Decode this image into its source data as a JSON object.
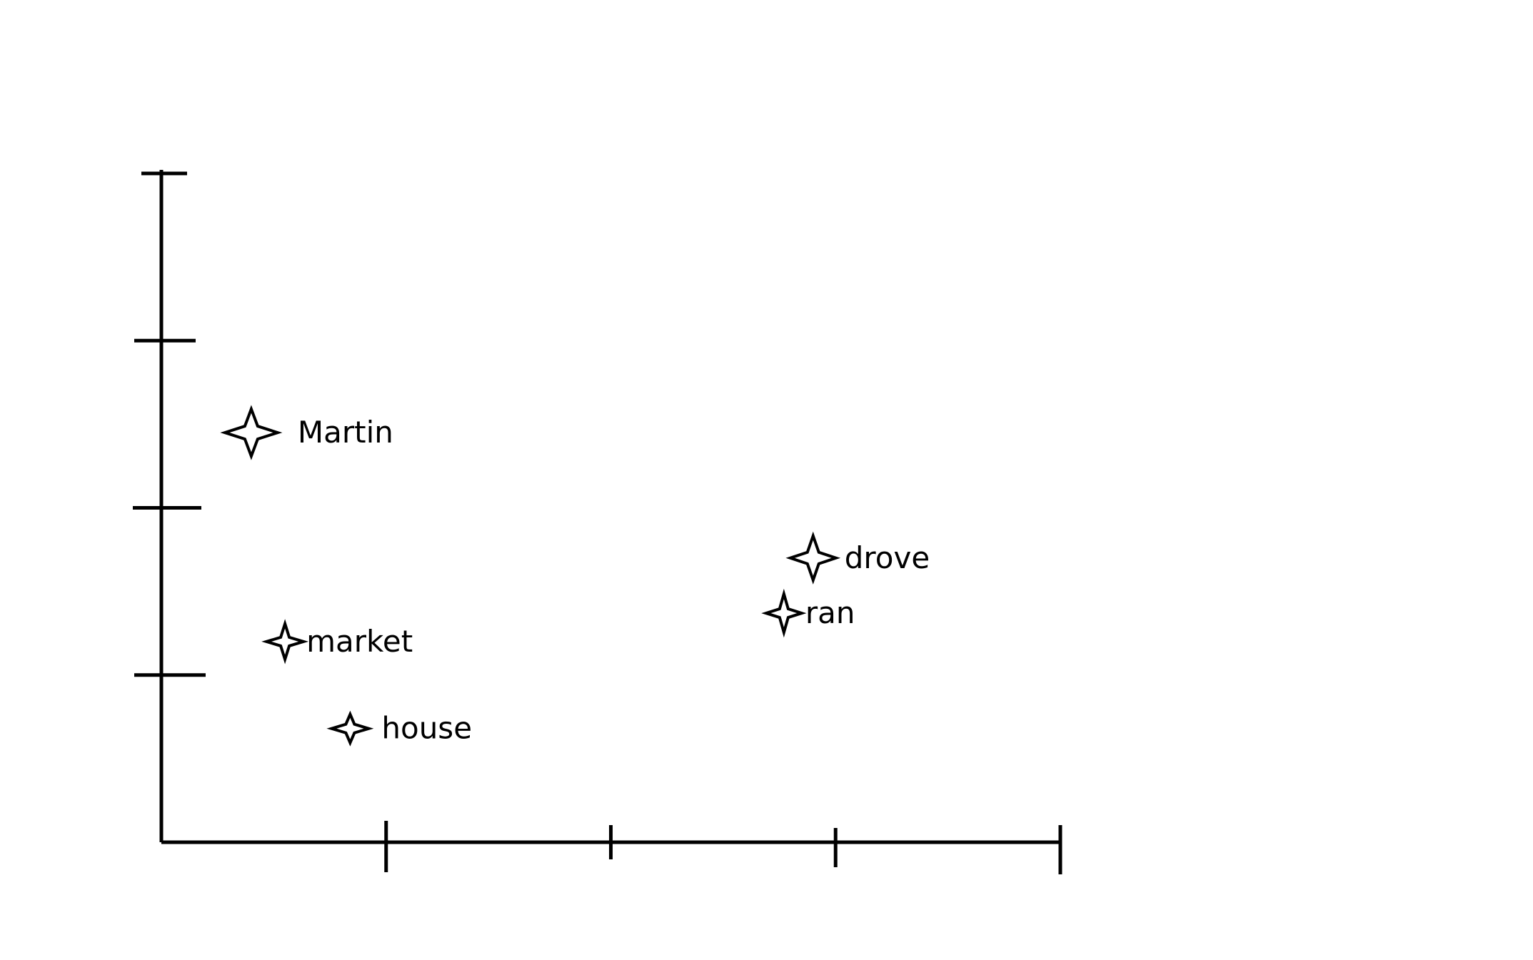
{
  "chart_data": {
    "type": "scatter",
    "title": "",
    "xlabel": "",
    "ylabel": "",
    "xlim": [
      0,
      4
    ],
    "ylim": [
      0,
      4
    ],
    "x_ticks": [
      1,
      2,
      3,
      4
    ],
    "y_ticks": [
      1,
      2,
      3,
      4
    ],
    "grid": false,
    "legend": "none",
    "marker": "four-point-star",
    "color": "#000000",
    "points": [
      {
        "label": "Martin",
        "x": 0.4,
        "y": 2.45
      },
      {
        "label": "drove",
        "x": 2.9,
        "y": 1.7
      },
      {
        "label": "ran",
        "x": 2.77,
        "y": 1.37
      },
      {
        "label": "market",
        "x": 0.55,
        "y": 1.2
      },
      {
        "label": "house",
        "x": 0.84,
        "y": 0.68
      }
    ]
  }
}
